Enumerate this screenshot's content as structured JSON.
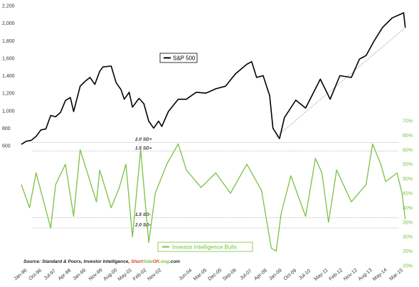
{
  "chart_data": {
    "type": "line",
    "x_labels": [
      "Jan-96",
      "Oct-96",
      "Jul-97",
      "Apr-98",
      "Jan-99",
      "Nov-99",
      "Aug-00",
      "May-01",
      "Feb-02",
      "Nov-02",
      "Jun-04",
      "Mar-05",
      "Dec-05",
      "Sep-06",
      "Jul-07",
      "Apr-08",
      "Jan-09",
      "Oct-09",
      "Jul-10",
      "May-11",
      "Feb-12",
      "Nov-12",
      "Aug-13",
      "May-14",
      "Mar-15"
    ],
    "left_axis": {
      "ticks": [
        600,
        800,
        1000,
        1200,
        1400,
        1600,
        1800,
        2000,
        2200
      ],
      "range": [
        600,
        2200
      ],
      "tick_labels": [
        "600",
        "800",
        "1,000",
        "1,200",
        "1,400",
        "1,600",
        "1,800",
        "2,000",
        "2,200"
      ]
    },
    "right_axis": {
      "ticks": [
        20,
        25,
        30,
        35,
        40,
        45,
        50,
        55,
        60,
        65,
        70
      ],
      "range": [
        20,
        70
      ],
      "tick_labels": [
        "20%",
        "25%",
        "30%",
        "35%",
        "40%",
        "45%",
        "50%",
        "55%",
        "60%",
        "65%",
        "70%"
      ]
    },
    "series": [
      {
        "name": "S&P 500",
        "axis": "left",
        "color": "#000000",
        "points": [
          [
            "Jan-96",
            615
          ],
          [
            "Apr-96",
            650
          ],
          [
            "Jul-96",
            660
          ],
          [
            "Oct-96",
            705
          ],
          [
            "Jan-97",
            780
          ],
          [
            "Apr-97",
            790
          ],
          [
            "Jul-97",
            945
          ],
          [
            "Oct-97",
            930
          ],
          [
            "Jan-98",
            980
          ],
          [
            "Apr-98",
            1115
          ],
          [
            "Jul-98",
            1150
          ],
          [
            "Sep-98",
            990
          ],
          [
            "Jan-99",
            1280
          ],
          [
            "Apr-99",
            1335
          ],
          [
            "Jul-99",
            1380
          ],
          [
            "Oct-99",
            1300
          ],
          [
            "Jan-00",
            1450
          ],
          [
            "Mar-00",
            1500
          ],
          [
            "Aug-00",
            1510
          ],
          [
            "Nov-00",
            1320
          ],
          [
            "Feb-01",
            1240
          ],
          [
            "Apr-01",
            1130
          ],
          [
            "Jul-01",
            1210
          ],
          [
            "Sep-01",
            1040
          ],
          [
            "Jan-02",
            1140
          ],
          [
            "Apr-02",
            1080
          ],
          [
            "Jul-02",
            880
          ],
          [
            "Oct-02",
            800
          ],
          [
            "Jan-03",
            880
          ],
          [
            "Mar-03",
            820
          ],
          [
            "Jul-03",
            990
          ],
          [
            "Jan-04",
            1130
          ],
          [
            "Jun-04",
            1130
          ],
          [
            "Dec-04",
            1210
          ],
          [
            "Jun-05",
            1200
          ],
          [
            "Dec-05",
            1250
          ],
          [
            "Jun-06",
            1280
          ],
          [
            "Dec-06",
            1420
          ],
          [
            "Jul-07",
            1530
          ],
          [
            "Oct-07",
            1560
          ],
          [
            "Jan-08",
            1380
          ],
          [
            "May-08",
            1400
          ],
          [
            "Sep-08",
            1170
          ],
          [
            "Nov-08",
            800
          ],
          [
            "Mar-09",
            680
          ],
          [
            "Jun-09",
            920
          ],
          [
            "Jan-10",
            1120
          ],
          [
            "Jul-10",
            1030
          ],
          [
            "Apr-11",
            1360
          ],
          [
            "Oct-11",
            1130
          ],
          [
            "Apr-12",
            1400
          ],
          [
            "Nov-12",
            1380
          ],
          [
            "Apr-13",
            1590
          ],
          [
            "Aug-13",
            1630
          ],
          [
            "Jan-14",
            1800
          ],
          [
            "Jun-14",
            1950
          ],
          [
            "Dec-14",
            2060
          ],
          [
            "Jun-15",
            2110
          ],
          [
            "Jul-15",
            2120
          ],
          [
            "Aug-15",
            1950
          ]
        ]
      },
      {
        "name": "Investor Intelligence Bulls",
        "axis": "right",
        "color": "#7ac143",
        "points": [
          [
            "Jan-96",
            48
          ],
          [
            "Jun-96",
            40
          ],
          [
            "Oct-96",
            52
          ],
          [
            "Jul-97",
            33
          ],
          [
            "Oct-97",
            48
          ],
          [
            "Apr-98",
            55
          ],
          [
            "Sep-98",
            37
          ],
          [
            "Jan-99",
            60
          ],
          [
            "Nov-99",
            42
          ],
          [
            "Jan-00",
            53
          ],
          [
            "Aug-00",
            40
          ],
          [
            "Jan-01",
            47
          ],
          [
            "May-01",
            55
          ],
          [
            "Sep-01",
            30
          ],
          [
            "Feb-02",
            60
          ],
          [
            "Jul-02",
            28
          ],
          [
            "Nov-02",
            45
          ],
          [
            "Jun-03",
            55
          ],
          [
            "Jan-04",
            62
          ],
          [
            "Jun-04",
            53
          ],
          [
            "Mar-05",
            47
          ],
          [
            "Dec-05",
            52
          ],
          [
            "Sep-06",
            45
          ],
          [
            "Jul-07",
            55
          ],
          [
            "Apr-08",
            46
          ],
          [
            "Oct-08",
            26
          ],
          [
            "Jan-09",
            25
          ],
          [
            "Apr-09",
            38
          ],
          [
            "Oct-09",
            51
          ],
          [
            "Jul-10",
            37
          ],
          [
            "Jan-11",
            57
          ],
          [
            "May-11",
            52
          ],
          [
            "Sep-11",
            35
          ],
          [
            "Feb-12",
            53
          ],
          [
            "Nov-12",
            42
          ],
          [
            "Aug-13",
            48
          ],
          [
            "Dec-13",
            62
          ],
          [
            "May-14",
            55
          ],
          [
            "Aug-14",
            49
          ],
          [
            "Mar-15",
            52
          ],
          [
            "Jun-15",
            45
          ],
          [
            "Aug-15",
            36
          ]
        ]
      }
    ],
    "reference_lines": [
      {
        "label": "2.0 SD+",
        "value": 62.5
      },
      {
        "label": "1.5 SD+",
        "value": 59.5
      },
      {
        "label": "1.5 SD-",
        "value": 36.5
      },
      {
        "label": "2.0 SD-",
        "value": 33.0
      }
    ],
    "trendline": {
      "style": "dotted",
      "from": [
        "Jan-09",
        700
      ],
      "to": [
        "Aug-15",
        1950
      ]
    },
    "legend_top": {
      "label": "S&P 500",
      "placement": "top-center"
    },
    "legend_bottom": {
      "label": "Investor Intelligence Bulls",
      "placement": "bottom-center"
    },
    "source": {
      "prefix": "Source: Standard & Poors, Investor Intelligence, ",
      "site_a": "Short",
      "site_b": "Side",
      "site_c": "Of",
      "site_d": "Long",
      "site_e": ".com"
    },
    "colors": {
      "sp500": "#000000",
      "bulls": "#7ac143",
      "site_red": "#e3342f",
      "site_green": "#7ac143"
    }
  }
}
